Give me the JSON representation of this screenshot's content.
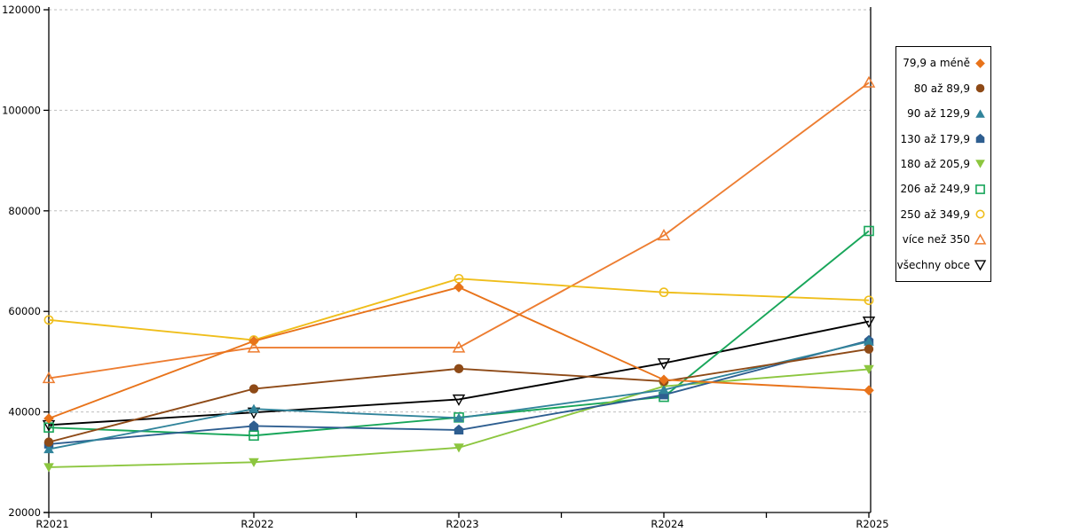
{
  "chart_data": {
    "type": "line",
    "categories": [
      "R2021",
      "R2022",
      "R2023",
      "R2024",
      "R2025"
    ],
    "series": [
      {
        "name": "79,9 a méně",
        "color": "#E8731A",
        "marker": "diamond-filled",
        "values": [
          38700,
          54100,
          64800,
          46400,
          44300
        ]
      },
      {
        "name": "80 až 89,9",
        "color": "#8E4A17",
        "marker": "circle-filled",
        "values": [
          34000,
          44600,
          48600,
          46100,
          52500
        ]
      },
      {
        "name": "90 až 129,9",
        "color": "#31849B",
        "marker": "triangle-up-filled",
        "values": [
          32600,
          40600,
          38800,
          44400,
          54000
        ]
      },
      {
        "name": "130 až 179,9",
        "color": "#2E5E90",
        "marker": "pentagon-filled",
        "values": [
          33600,
          37200,
          36400,
          43400,
          54200
        ]
      },
      {
        "name": "180 až 205,9",
        "color": "#8CC63F",
        "marker": "triangle-down-filled",
        "values": [
          29000,
          30000,
          32900,
          45100,
          48500
        ]
      },
      {
        "name": "206 až 249,9",
        "color": "#18A65A",
        "marker": "square-open",
        "values": [
          36900,
          35300,
          38900,
          43000,
          76000
        ]
      },
      {
        "name": "250 až 349,9",
        "color": "#EFBE1B",
        "marker": "circle-open",
        "values": [
          58300,
          54300,
          66500,
          63800,
          62200
        ]
      },
      {
        "name": "více než 350",
        "color": "#ED7D31",
        "marker": "triangle-up-open",
        "values": [
          46700,
          52800,
          52800,
          75100,
          105500
        ]
      },
      {
        "name": "všechny obce",
        "color": "#000000",
        "marker": "triangle-down-open",
        "values": [
          37400,
          39900,
          42500,
          49700,
          58000
        ]
      }
    ],
    "title": "",
    "xlabel": "",
    "ylabel": "",
    "ylim": [
      20000,
      120000
    ],
    "ytick_step": 20000,
    "y_tick_labels": [
      "20000",
      "40000",
      "60000",
      "80000",
      "100000",
      "120000"
    ],
    "grid": "horizontal-dashed",
    "legend_position": "right"
  },
  "colors": {
    "grid": "#BEBEBE",
    "axis": "#000000",
    "background": "#FFFFFF",
    "legend_border": "#000000"
  }
}
